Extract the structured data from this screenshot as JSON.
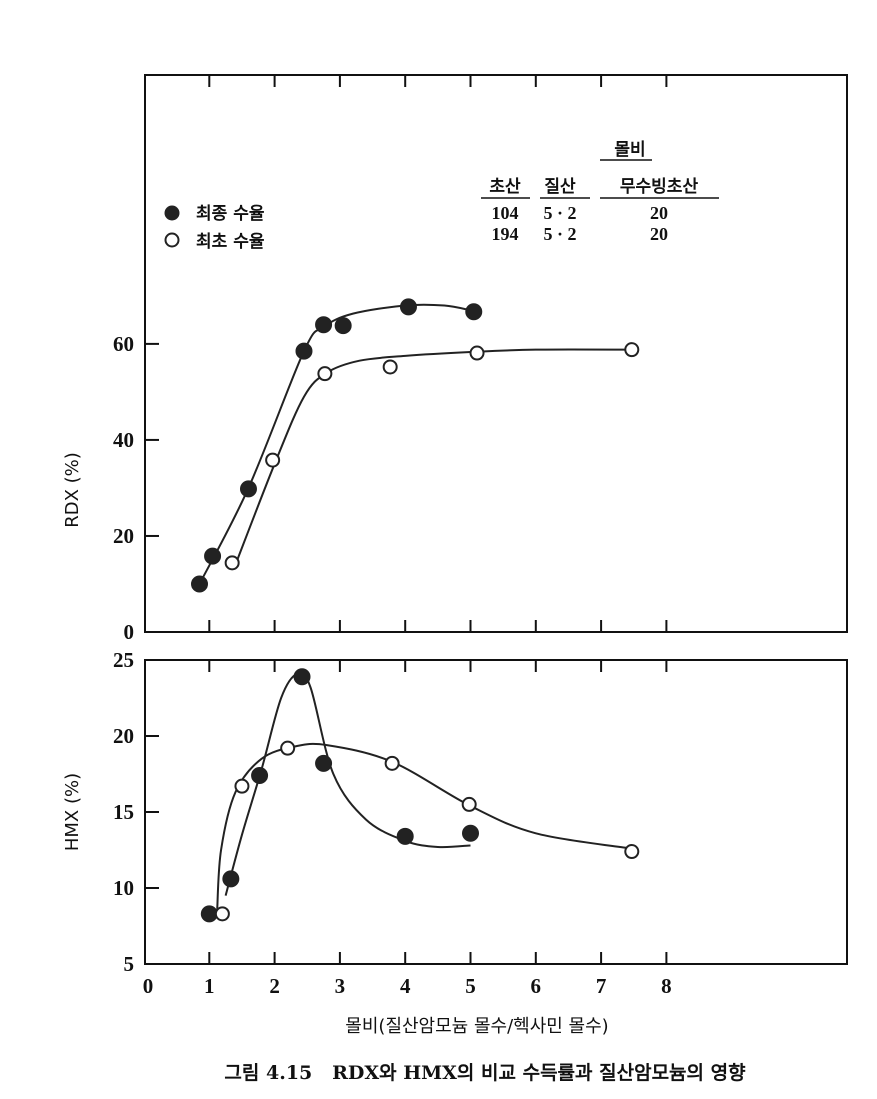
{
  "chart_data": [
    {
      "type": "scatter",
      "panel": "top",
      "ylabel": "RDX (%)",
      "xlim": [
        0,
        10.7
      ],
      "ylim": [
        0,
        116
      ],
      "yticks": [
        "0",
        "20",
        "40",
        "60"
      ],
      "ytick_values": [
        0,
        20,
        40,
        60
      ],
      "grid": false,
      "series": [
        {
          "name": "최종 수율",
          "marker": "filled",
          "points": [
            [
              0.85,
              10
            ],
            [
              1.05,
              15.8
            ],
            [
              1.6,
              29.8
            ],
            [
              2.45,
              58.5
            ],
            [
              2.75,
              64
            ],
            [
              3.05,
              63.8
            ],
            [
              4.05,
              67.7
            ],
            [
              5.05,
              66.7
            ]
          ],
          "curve": [
            [
              0.85,
              10
            ],
            [
              1.6,
              30
            ],
            [
              2.45,
              58.5
            ],
            [
              2.75,
              63.5
            ],
            [
              3.2,
              66.3
            ],
            [
              4.0,
              68
            ],
            [
              4.6,
              68
            ],
            [
              5.0,
              67
            ]
          ]
        },
        {
          "name": "최초 수율",
          "marker": "open",
          "points": [
            [
              1.35,
              14.4
            ],
            [
              1.97,
              35.8
            ],
            [
              2.77,
              53.8
            ],
            [
              3.77,
              55.2
            ],
            [
              5.1,
              58.1
            ],
            [
              7.47,
              58.8
            ]
          ],
          "curve": [
            [
              1.4,
              14
            ],
            [
              2.0,
              35
            ],
            [
              2.45,
              49
            ],
            [
              2.8,
              54
            ],
            [
              3.3,
              56.5
            ],
            [
              4.0,
              57.5
            ],
            [
              5.0,
              58.3
            ],
            [
              6.0,
              58.8
            ],
            [
              7.5,
              58.8
            ]
          ]
        }
      ],
      "legend": {
        "placement": "top-left",
        "entries": [
          "최종 수율",
          "최초 수율"
        ]
      },
      "annotation_table": {
        "title": "몰비",
        "headers": [
          "초산",
          "질산",
          "무수빙초산"
        ],
        "rows": [
          [
            "104",
            "5 · 2",
            "20"
          ],
          [
            "194",
            "5 · 2",
            "20"
          ]
        ]
      }
    },
    {
      "type": "scatter",
      "panel": "bottom",
      "ylabel": "HMX (%)",
      "xlabel": "몰비(질산암모늄 몰수/헥사민 몰수)",
      "xlim": [
        0,
        10.7
      ],
      "ylim": [
        5,
        25
      ],
      "xticks": [
        "0",
        "1",
        "2",
        "3",
        "4",
        "5",
        "6",
        "7",
        "8"
      ],
      "xtick_values": [
        0,
        1,
        2,
        3,
        4,
        5,
        6,
        7,
        8
      ],
      "yticks": [
        "5",
        "10",
        "15",
        "20",
        "25"
      ],
      "ytick_values": [
        5,
        10,
        15,
        20,
        25
      ],
      "grid": false,
      "series": [
        {
          "name": "최종 수율",
          "marker": "filled",
          "points": [
            [
              1.0,
              8.3
            ],
            [
              1.33,
              10.6
            ],
            [
              1.77,
              17.4
            ],
            [
              2.42,
              23.9
            ],
            [
              2.75,
              18.2
            ],
            [
              4.0,
              13.4
            ],
            [
              5.0,
              13.6
            ]
          ],
          "curve": [
            [
              1.25,
              9.5
            ],
            [
              1.5,
              13.5
            ],
            [
              1.8,
              17.8
            ],
            [
              2.1,
              22.5
            ],
            [
              2.35,
              24.1
            ],
            [
              2.55,
              23.2
            ],
            [
              2.9,
              17.5
            ],
            [
              3.4,
              14.5
            ],
            [
              4.0,
              13.1
            ],
            [
              4.5,
              12.7
            ],
            [
              5.0,
              12.8
            ]
          ]
        },
        {
          "name": "최초 수율",
          "marker": "open",
          "points": [
            [
              1.2,
              8.3
            ],
            [
              1.5,
              16.7
            ],
            [
              2.2,
              19.2
            ],
            [
              3.8,
              18.2
            ],
            [
              4.98,
              15.5
            ],
            [
              7.47,
              12.4
            ]
          ],
          "curve": [
            [
              1.12,
              8.5
            ],
            [
              1.18,
              12.5
            ],
            [
              1.4,
              16.3
            ],
            [
              1.8,
              18.5
            ],
            [
              2.3,
              19.3
            ],
            [
              2.8,
              19.4
            ],
            [
              3.8,
              18.3
            ],
            [
              5.0,
              15.4
            ],
            [
              6.0,
              13.6
            ],
            [
              7.45,
              12.6
            ]
          ]
        }
      ]
    }
  ],
  "caption": "그림 4.15   RDX와 HMX의 비교 수득률과 질산암모늄의 영향"
}
